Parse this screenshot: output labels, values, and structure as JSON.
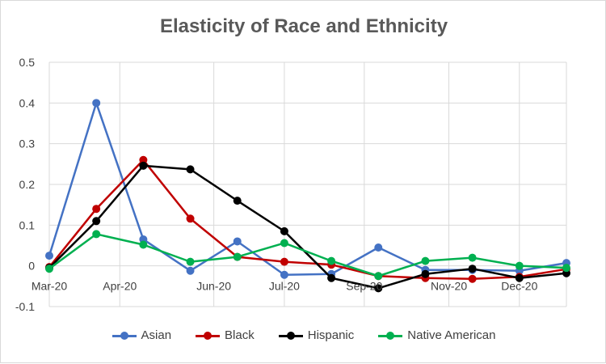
{
  "chart_data": {
    "type": "line",
    "title": "Elasticity of Race and Ethnicity",
    "xlabel": "",
    "ylabel": "",
    "ylim": [
      -0.1,
      0.5
    ],
    "yticks": [
      "0.5",
      "0.4",
      "0.3",
      "0.2",
      "0.1",
      "0",
      "-0.1"
    ],
    "ytick_values": [
      0.5,
      0.4,
      0.3,
      0.2,
      0.1,
      0,
      -0.1
    ],
    "x_tick_labels": [
      {
        "label": "Mar-20",
        "index": 0
      },
      {
        "label": "Apr-20",
        "index": 1.5
      },
      {
        "label": "Jun-20",
        "index": 3.5
      },
      {
        "label": "Jul-20",
        "index": 5
      },
      {
        "label": "Sep-20",
        "index": 6.7
      },
      {
        "label": "Nov-20",
        "index": 8.5
      },
      {
        "label": "Dec-20",
        "index": 10
      }
    ],
    "num_points": 12,
    "grid": true,
    "legend_position": "bottom",
    "series": [
      {
        "name": "Asian",
        "color": "#4472C4",
        "values": [
          0.025,
          0.4,
          0.065,
          -0.012,
          0.06,
          -0.022,
          -0.02,
          0.045,
          -0.01,
          -0.01,
          -0.012,
          0.007
        ]
      },
      {
        "name": "Black",
        "color": "#C00000",
        "values": [
          -0.003,
          0.14,
          0.26,
          0.116,
          0.022,
          0.01,
          0.003,
          -0.025,
          -0.03,
          -0.032,
          -0.027,
          -0.008
        ]
      },
      {
        "name": "Hispanic",
        "color": "#000000",
        "values": [
          -0.005,
          0.11,
          0.246,
          0.237,
          0.16,
          0.085,
          -0.03,
          -0.055,
          -0.02,
          -0.007,
          -0.03,
          -0.018
        ]
      },
      {
        "name": "Native American",
        "color": "#00B050",
        "values": [
          -0.007,
          0.078,
          0.052,
          0.01,
          0.022,
          0.056,
          0.012,
          -0.025,
          0.012,
          0.02,
          0.0,
          -0.005
        ]
      }
    ]
  }
}
